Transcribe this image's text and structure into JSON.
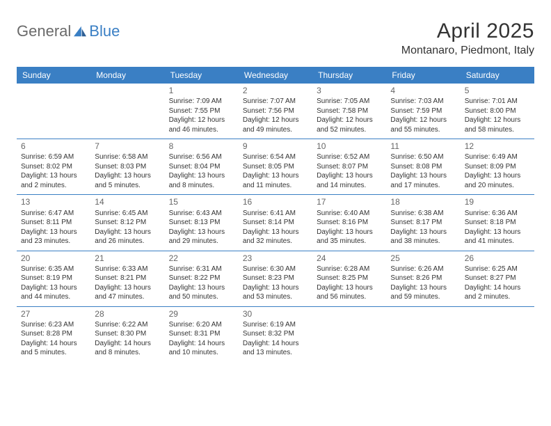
{
  "brand": {
    "part1": "General",
    "part2": "Blue"
  },
  "title": "April 2025",
  "location": "Montanaro, Piedmont, Italy",
  "colors": {
    "header_bg": "#3a7fc4",
    "header_text": "#ffffff",
    "row_border": "#3a7fc4",
    "body_text": "#333333",
    "day_num": "#666666",
    "logo_gray": "#6a6a6a",
    "logo_blue": "#3a7fc4",
    "page_bg": "#ffffff"
  },
  "daysOfWeek": [
    "Sunday",
    "Monday",
    "Tuesday",
    "Wednesday",
    "Thursday",
    "Friday",
    "Saturday"
  ],
  "weeks": [
    [
      null,
      null,
      {
        "n": "1",
        "sr": "Sunrise: 7:09 AM",
        "ss": "Sunset: 7:55 PM",
        "dl1": "Daylight: 12 hours",
        "dl2": "and 46 minutes."
      },
      {
        "n": "2",
        "sr": "Sunrise: 7:07 AM",
        "ss": "Sunset: 7:56 PM",
        "dl1": "Daylight: 12 hours",
        "dl2": "and 49 minutes."
      },
      {
        "n": "3",
        "sr": "Sunrise: 7:05 AM",
        "ss": "Sunset: 7:58 PM",
        "dl1": "Daylight: 12 hours",
        "dl2": "and 52 minutes."
      },
      {
        "n": "4",
        "sr": "Sunrise: 7:03 AM",
        "ss": "Sunset: 7:59 PM",
        "dl1": "Daylight: 12 hours",
        "dl2": "and 55 minutes."
      },
      {
        "n": "5",
        "sr": "Sunrise: 7:01 AM",
        "ss": "Sunset: 8:00 PM",
        "dl1": "Daylight: 12 hours",
        "dl2": "and 58 minutes."
      }
    ],
    [
      {
        "n": "6",
        "sr": "Sunrise: 6:59 AM",
        "ss": "Sunset: 8:02 PM",
        "dl1": "Daylight: 13 hours",
        "dl2": "and 2 minutes."
      },
      {
        "n": "7",
        "sr": "Sunrise: 6:58 AM",
        "ss": "Sunset: 8:03 PM",
        "dl1": "Daylight: 13 hours",
        "dl2": "and 5 minutes."
      },
      {
        "n": "8",
        "sr": "Sunrise: 6:56 AM",
        "ss": "Sunset: 8:04 PM",
        "dl1": "Daylight: 13 hours",
        "dl2": "and 8 minutes."
      },
      {
        "n": "9",
        "sr": "Sunrise: 6:54 AM",
        "ss": "Sunset: 8:05 PM",
        "dl1": "Daylight: 13 hours",
        "dl2": "and 11 minutes."
      },
      {
        "n": "10",
        "sr": "Sunrise: 6:52 AM",
        "ss": "Sunset: 8:07 PM",
        "dl1": "Daylight: 13 hours",
        "dl2": "and 14 minutes."
      },
      {
        "n": "11",
        "sr": "Sunrise: 6:50 AM",
        "ss": "Sunset: 8:08 PM",
        "dl1": "Daylight: 13 hours",
        "dl2": "and 17 minutes."
      },
      {
        "n": "12",
        "sr": "Sunrise: 6:49 AM",
        "ss": "Sunset: 8:09 PM",
        "dl1": "Daylight: 13 hours",
        "dl2": "and 20 minutes."
      }
    ],
    [
      {
        "n": "13",
        "sr": "Sunrise: 6:47 AM",
        "ss": "Sunset: 8:11 PM",
        "dl1": "Daylight: 13 hours",
        "dl2": "and 23 minutes."
      },
      {
        "n": "14",
        "sr": "Sunrise: 6:45 AM",
        "ss": "Sunset: 8:12 PM",
        "dl1": "Daylight: 13 hours",
        "dl2": "and 26 minutes."
      },
      {
        "n": "15",
        "sr": "Sunrise: 6:43 AM",
        "ss": "Sunset: 8:13 PM",
        "dl1": "Daylight: 13 hours",
        "dl2": "and 29 minutes."
      },
      {
        "n": "16",
        "sr": "Sunrise: 6:41 AM",
        "ss": "Sunset: 8:14 PM",
        "dl1": "Daylight: 13 hours",
        "dl2": "and 32 minutes."
      },
      {
        "n": "17",
        "sr": "Sunrise: 6:40 AM",
        "ss": "Sunset: 8:16 PM",
        "dl1": "Daylight: 13 hours",
        "dl2": "and 35 minutes."
      },
      {
        "n": "18",
        "sr": "Sunrise: 6:38 AM",
        "ss": "Sunset: 8:17 PM",
        "dl1": "Daylight: 13 hours",
        "dl2": "and 38 minutes."
      },
      {
        "n": "19",
        "sr": "Sunrise: 6:36 AM",
        "ss": "Sunset: 8:18 PM",
        "dl1": "Daylight: 13 hours",
        "dl2": "and 41 minutes."
      }
    ],
    [
      {
        "n": "20",
        "sr": "Sunrise: 6:35 AM",
        "ss": "Sunset: 8:19 PM",
        "dl1": "Daylight: 13 hours",
        "dl2": "and 44 minutes."
      },
      {
        "n": "21",
        "sr": "Sunrise: 6:33 AM",
        "ss": "Sunset: 8:21 PM",
        "dl1": "Daylight: 13 hours",
        "dl2": "and 47 minutes."
      },
      {
        "n": "22",
        "sr": "Sunrise: 6:31 AM",
        "ss": "Sunset: 8:22 PM",
        "dl1": "Daylight: 13 hours",
        "dl2": "and 50 minutes."
      },
      {
        "n": "23",
        "sr": "Sunrise: 6:30 AM",
        "ss": "Sunset: 8:23 PM",
        "dl1": "Daylight: 13 hours",
        "dl2": "and 53 minutes."
      },
      {
        "n": "24",
        "sr": "Sunrise: 6:28 AM",
        "ss": "Sunset: 8:25 PM",
        "dl1": "Daylight: 13 hours",
        "dl2": "and 56 minutes."
      },
      {
        "n": "25",
        "sr": "Sunrise: 6:26 AM",
        "ss": "Sunset: 8:26 PM",
        "dl1": "Daylight: 13 hours",
        "dl2": "and 59 minutes."
      },
      {
        "n": "26",
        "sr": "Sunrise: 6:25 AM",
        "ss": "Sunset: 8:27 PM",
        "dl1": "Daylight: 14 hours",
        "dl2": "and 2 minutes."
      }
    ],
    [
      {
        "n": "27",
        "sr": "Sunrise: 6:23 AM",
        "ss": "Sunset: 8:28 PM",
        "dl1": "Daylight: 14 hours",
        "dl2": "and 5 minutes."
      },
      {
        "n": "28",
        "sr": "Sunrise: 6:22 AM",
        "ss": "Sunset: 8:30 PM",
        "dl1": "Daylight: 14 hours",
        "dl2": "and 8 minutes."
      },
      {
        "n": "29",
        "sr": "Sunrise: 6:20 AM",
        "ss": "Sunset: 8:31 PM",
        "dl1": "Daylight: 14 hours",
        "dl2": "and 10 minutes."
      },
      {
        "n": "30",
        "sr": "Sunrise: 6:19 AM",
        "ss": "Sunset: 8:32 PM",
        "dl1": "Daylight: 14 hours",
        "dl2": "and 13 minutes."
      },
      null,
      null,
      null
    ]
  ]
}
